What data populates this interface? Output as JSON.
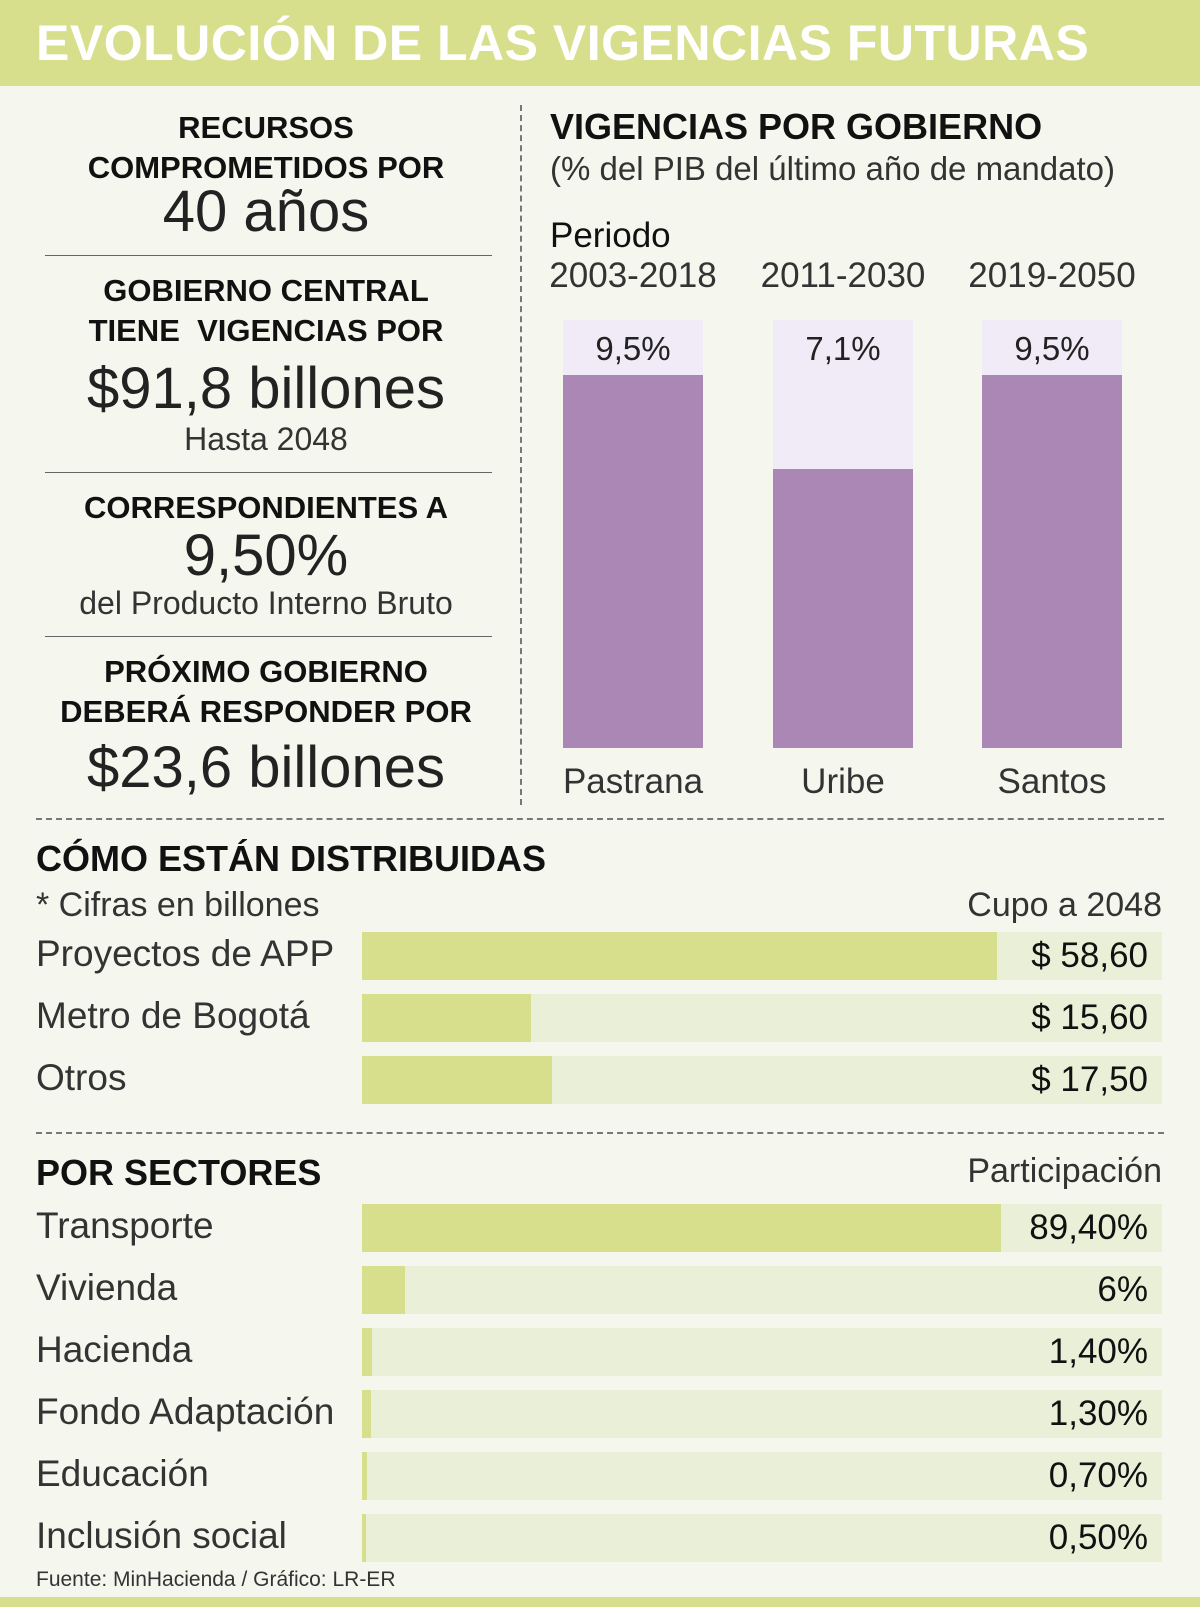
{
  "header": {
    "title": "EVOLUCIÓN DE LAS VIGENCIAS FUTURAS"
  },
  "stats": {
    "s1_label": "RECURSOS COMPROMETIDOS POR",
    "s1_value": "40 años",
    "s2_label_line1": "GOBIERNO CENTRAL",
    "s2_label_line2": "TIENE  VIGENCIAS POR",
    "s2_value": "$91,8 billones",
    "s2_sub": "Hasta 2048",
    "s3_label": "CORRESPONDIENTES A",
    "s3_value": "9,50%",
    "s3_sub": "del Producto Interno Bruto",
    "s4_label_line1": "PRÓXIMO GOBIERNO",
    "s4_label_line2": "DEBERÁ RESPONDER POR",
    "s4_value": "$23,6 billones"
  },
  "colors": {
    "accent": "#d8df8c",
    "purple": "#ab87b6",
    "purple_light": "#f0ebf6",
    "track": "#eaefd8"
  },
  "chart_data": [
    {
      "type": "bar",
      "title": "VIGENCIAS POR GOBIERNO",
      "subtitle": "(% del PIB del último año de mandato)",
      "period_header": "Periodo",
      "periods": [
        "2003-2018",
        "2011-2030",
        "2019-2050"
      ],
      "categories": [
        "Pastrana",
        "Uribe",
        "Santos"
      ],
      "values": [
        9.5,
        7.1,
        9.5
      ],
      "value_labels": [
        "9,5%",
        "7,1%",
        "9,5%"
      ],
      "ylim": [
        0,
        10.9
      ],
      "ylabel": "% del PIB"
    },
    {
      "type": "bar",
      "orientation": "horizontal",
      "title": "CÓMO ESTÁN DISTRIBUIDAS",
      "note": "* Cifras en billones",
      "value_header": "Cupo a 2048",
      "categories": [
        "Proyectos de APP",
        "Metro de Bogotá",
        "Otros"
      ],
      "values": [
        58.6,
        15.6,
        17.5
      ],
      "value_labels": [
        "$ 58,60",
        "$ 15,60",
        "$ 17,50"
      ],
      "xlim": [
        0,
        73.8
      ]
    },
    {
      "type": "bar",
      "orientation": "horizontal",
      "title": "POR SECTORES",
      "value_header": "Participación",
      "categories": [
        "Transporte",
        "Vivienda",
        "Hacienda",
        "Fondo Adaptación",
        "Educación",
        "Inclusión social"
      ],
      "values": [
        89.4,
        6,
        1.4,
        1.3,
        0.7,
        0.5
      ],
      "value_labels": [
        "89,40%",
        "6%",
        "1,40%",
        "1,30%",
        "0,70%",
        "0,50%"
      ],
      "xlim": [
        0,
        112
      ]
    }
  ],
  "footer": {
    "source": "Fuente: MinHacienda / Gráfico: LR-ER"
  }
}
